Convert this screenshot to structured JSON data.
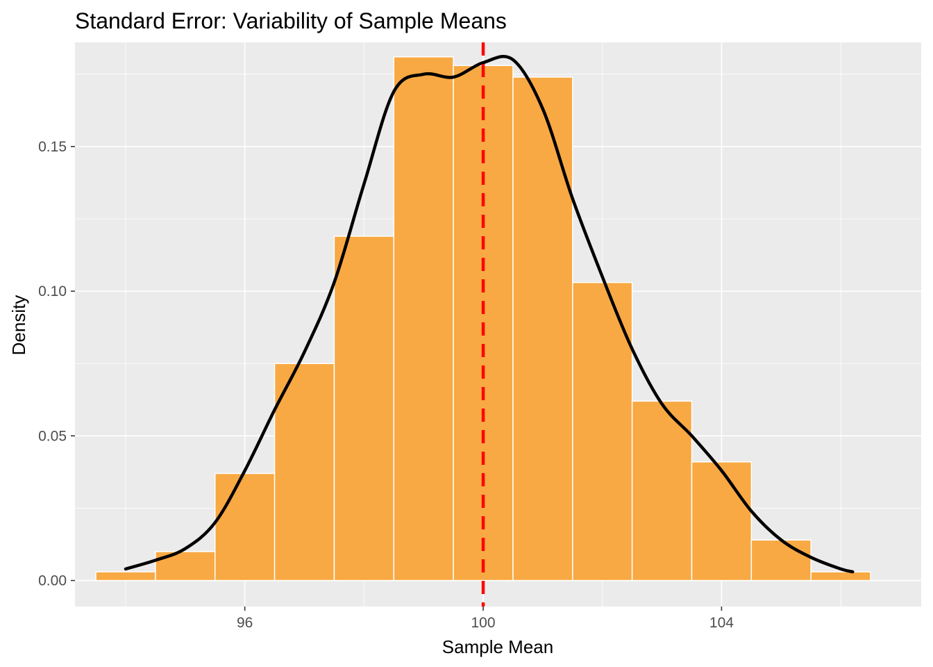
{
  "chart_data": {
    "type": "histogram",
    "title": "Standard Error: Variability of Sample Means",
    "xlabel": "Sample Mean",
    "ylabel": "Density",
    "xlim": [
      93.15,
      107.35
    ],
    "ylim": [
      -0.009,
      0.186
    ],
    "x_ticks": [
      {
        "value": 96,
        "label": "96"
      },
      {
        "value": 100,
        "label": "100"
      },
      {
        "value": 104,
        "label": "104"
      }
    ],
    "y_ticks": [
      {
        "value": 0.0,
        "label": "0.00"
      },
      {
        "value": 0.05,
        "label": "0.05"
      },
      {
        "value": 0.1,
        "label": "0.10"
      },
      {
        "value": 0.15,
        "label": "0.15"
      }
    ],
    "bins": [
      {
        "x0": 93.5,
        "x1": 94.5,
        "density": 0.003
      },
      {
        "x0": 94.5,
        "x1": 95.5,
        "density": 0.01
      },
      {
        "x0": 95.5,
        "x1": 96.5,
        "density": 0.037
      },
      {
        "x0": 96.5,
        "x1": 97.5,
        "density": 0.075
      },
      {
        "x0": 97.5,
        "x1": 98.5,
        "density": 0.119
      },
      {
        "x0": 98.5,
        "x1": 99.5,
        "density": 0.181
      },
      {
        "x0": 99.5,
        "x1": 100.5,
        "density": 0.178
      },
      {
        "x0": 100.5,
        "x1": 101.5,
        "density": 0.174
      },
      {
        "x0": 101.5,
        "x1": 102.5,
        "density": 0.103
      },
      {
        "x0": 102.5,
        "x1": 103.5,
        "density": 0.062
      },
      {
        "x0": 103.5,
        "x1": 104.5,
        "density": 0.041
      },
      {
        "x0": 104.5,
        "x1": 105.5,
        "density": 0.014
      },
      {
        "x0": 105.5,
        "x1": 106.5,
        "density": 0.003
      }
    ],
    "density_curve": {
      "x": [
        94.0,
        94.5,
        95.0,
        95.5,
        96.0,
        96.5,
        97.0,
        97.5,
        98.0,
        98.5,
        99.0,
        99.5,
        100.0,
        100.5,
        101.0,
        101.5,
        102.0,
        102.5,
        103.0,
        103.5,
        104.0,
        104.5,
        105.0,
        105.5,
        106.0,
        106.2
      ],
      "y": [
        0.004,
        0.007,
        0.011,
        0.02,
        0.038,
        0.059,
        0.079,
        0.103,
        0.137,
        0.169,
        0.175,
        0.174,
        0.179,
        0.18,
        0.163,
        0.132,
        0.105,
        0.08,
        0.061,
        0.05,
        0.038,
        0.024,
        0.014,
        0.008,
        0.004,
        0.003
      ]
    },
    "reference_line": {
      "x": 100,
      "style": "dashed"
    },
    "grid": true,
    "colors": {
      "panel": "#ebebeb",
      "grid": "#ffffff",
      "bar_fill": "#f8a943",
      "bar_outline": "#ffffff",
      "curve": "#000000",
      "reference_line": "#ff0000"
    }
  }
}
